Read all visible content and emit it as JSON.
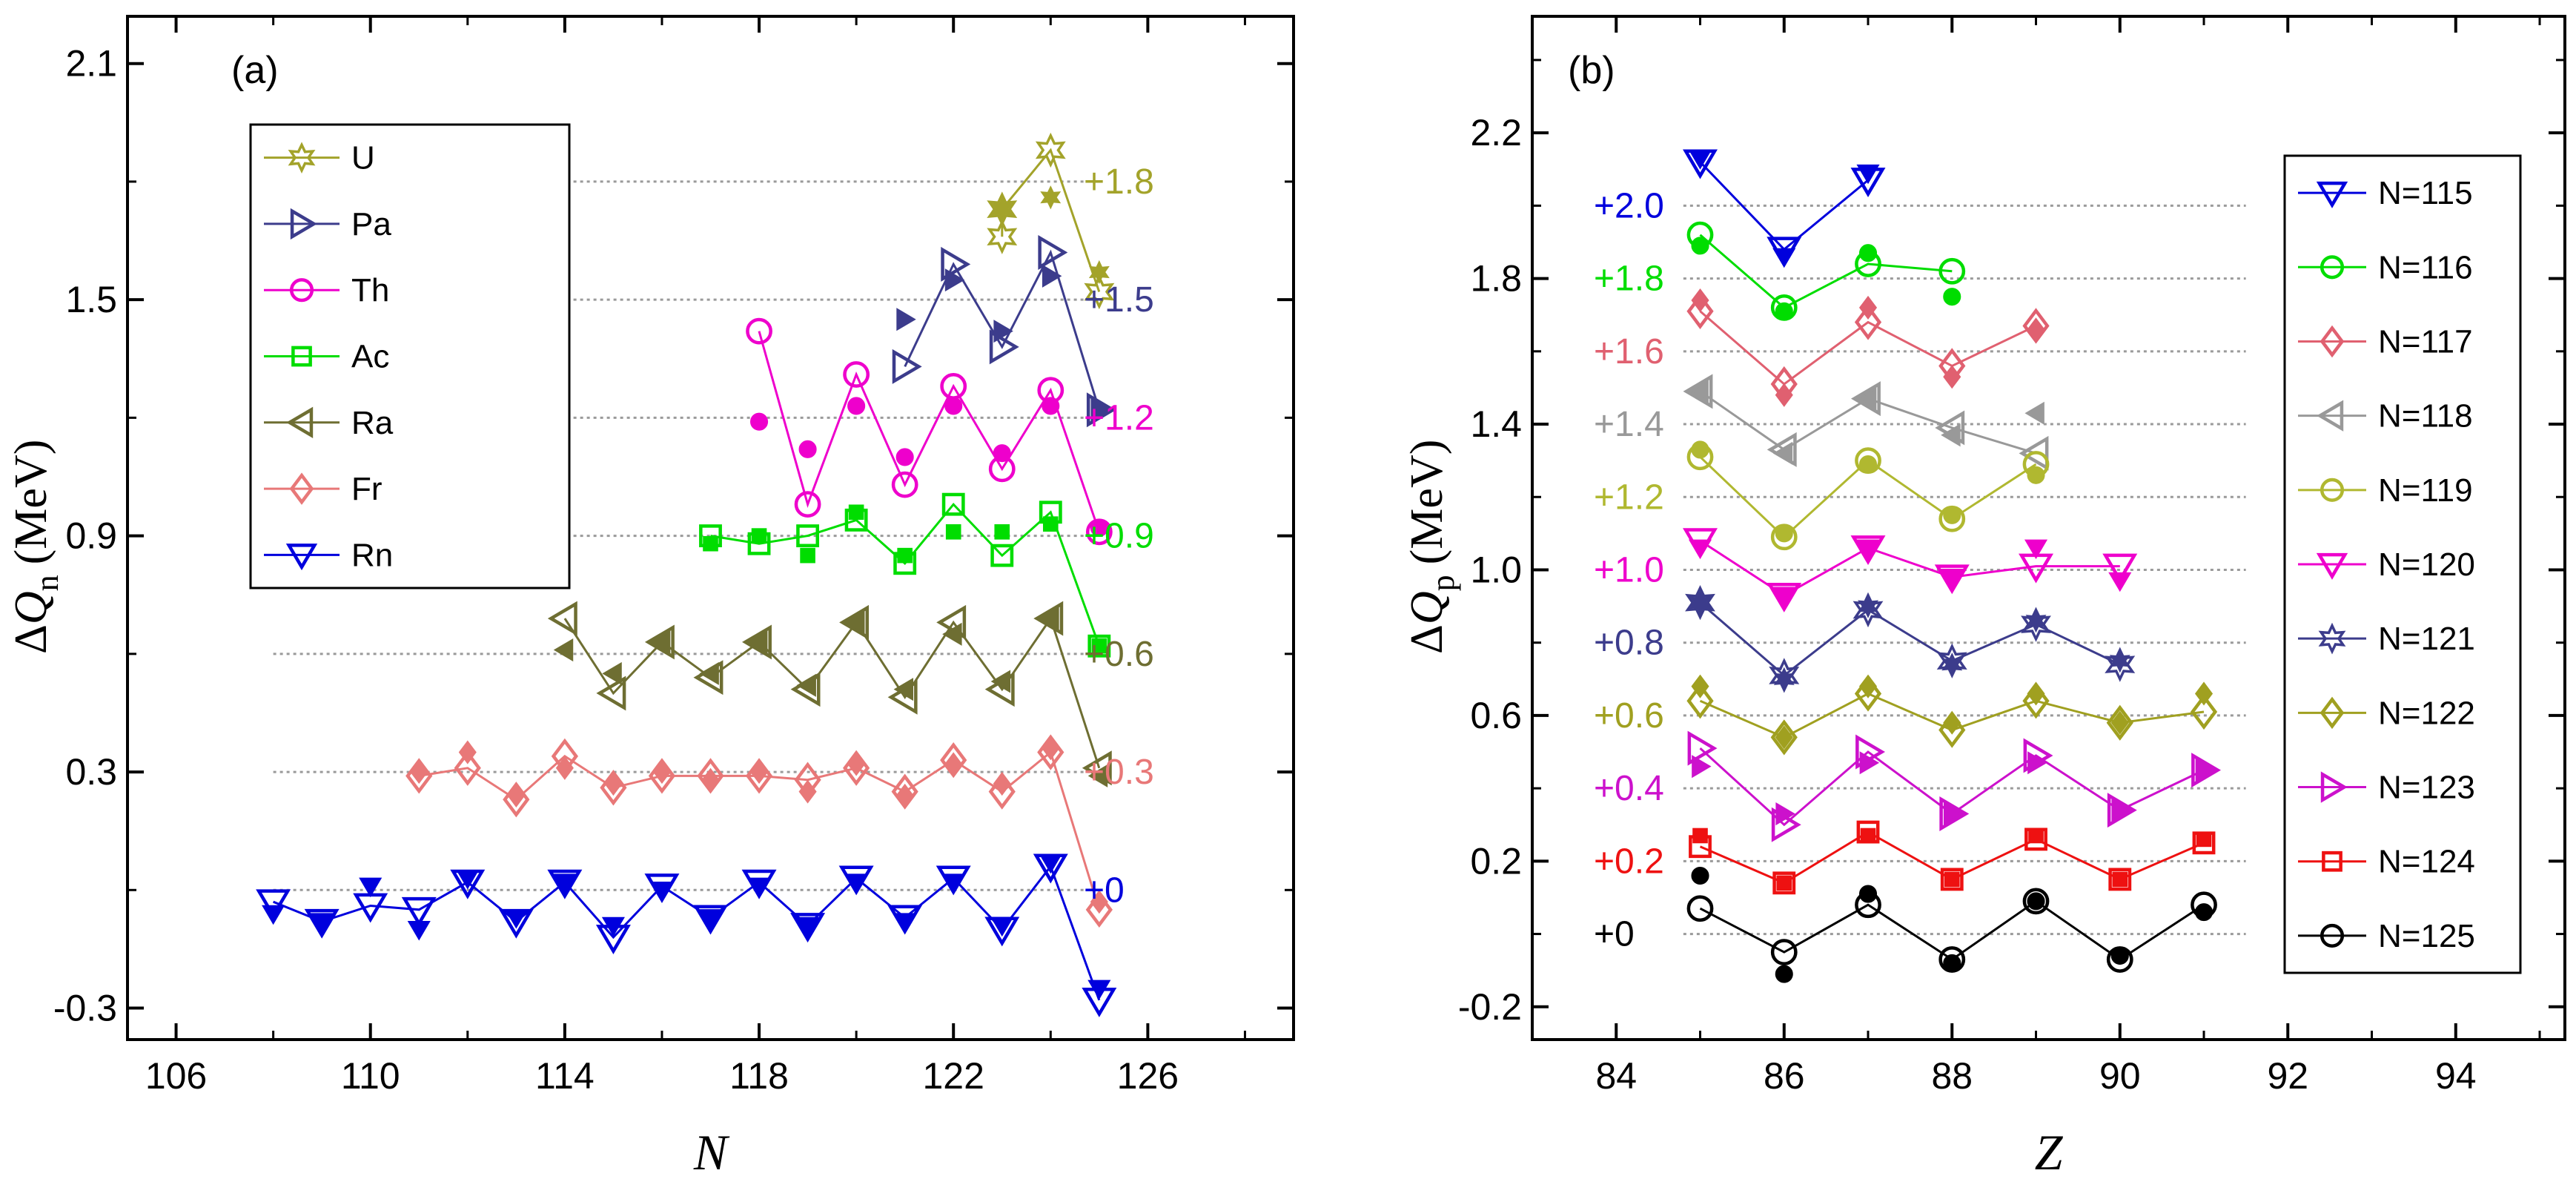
{
  "chart_data": [
    {
      "panel": "(a)",
      "type": "line",
      "xlabel": "N",
      "ylabel_prefix": "ΔQ",
      "ylabel_sub": "n",
      "ylabel_unit": "(MeV)",
      "xlim": [
        105,
        129
      ],
      "ylim": [
        -0.38,
        2.22
      ],
      "xticks": [
        106,
        110,
        114,
        118,
        122,
        126
      ],
      "yticks": [
        -0.3,
        0.3,
        0.9,
        1.5,
        2.1
      ],
      "ytick_labels": [
        "-0.3",
        "0.3",
        "0.9",
        "1.5",
        "2.1"
      ],
      "legend_position": "top-left",
      "series": [
        {
          "name": "U",
          "offset_label": "+1.8",
          "offset": 1.8,
          "color": "#a3a32a",
          "marker": "star",
          "x": [
            123,
            123,
            124,
            125
          ],
          "calc": [
            1.66,
            1.73,
            1.88,
            1.52
          ],
          "exp": [
            1.73,
            null,
            1.76,
            1.57
          ],
          "exp_x": [
            123,
            123,
            124,
            125
          ]
        },
        {
          "name": "Pa",
          "offset_label": "+1.5",
          "offset": 1.5,
          "color": "#3c3c8c",
          "marker": "tri-right",
          "x": [
            121,
            122,
            123,
            124,
            125
          ],
          "calc": [
            1.33,
            1.59,
            1.38,
            1.62,
            1.22
          ],
          "exp": [
            1.45,
            1.55,
            1.42,
            1.56,
            1.22
          ]
        },
        {
          "name": "Th",
          "offset_label": "+1.2",
          "offset": 1.2,
          "color": "#ee00cc",
          "marker": "circle",
          "x": [
            118,
            119,
            120,
            121,
            122,
            123,
            124,
            125
          ],
          "calc": [
            1.42,
            0.98,
            1.31,
            1.03,
            1.28,
            1.07,
            1.27,
            0.91
          ],
          "exp": [
            1.19,
            1.12,
            1.23,
            1.1,
            1.23,
            1.11,
            1.23,
            0.92
          ]
        },
        {
          "name": "Ac",
          "offset_label": "+0.9",
          "offset": 0.9,
          "color": "#00dd00",
          "marker": "square",
          "x": [
            117,
            118,
            119,
            120,
            121,
            122,
            123,
            124,
            125
          ],
          "calc": [
            0.9,
            0.88,
            0.9,
            0.94,
            0.83,
            0.98,
            0.85,
            0.96,
            0.62
          ],
          "exp": [
            0.88,
            0.9,
            0.85,
            0.96,
            0.85,
            0.91,
            0.91,
            0.93,
            0.62
          ]
        },
        {
          "name": "Ra",
          "offset_label": "+0.6",
          "offset": 0.6,
          "color": "#6e6e32",
          "marker": "tri-left",
          "x": [
            114,
            115,
            116,
            117,
            118,
            119,
            120,
            121,
            122,
            123,
            124,
            125
          ],
          "calc": [
            0.69,
            0.5,
            0.63,
            0.54,
            0.63,
            0.51,
            0.68,
            0.49,
            0.68,
            0.51,
            0.69,
            0.31
          ],
          "exp": [
            0.61,
            0.55,
            0.63,
            0.55,
            0.63,
            0.52,
            0.68,
            0.51,
            0.65,
            0.53,
            0.69,
            0.29
          ]
        },
        {
          "name": "Fr",
          "offset_label": "+0.3",
          "offset": 0.3,
          "color": "#e87878",
          "marker": "diamond",
          "x": [
            111,
            112,
            113,
            114,
            115,
            116,
            117,
            118,
            119,
            120,
            121,
            122,
            123,
            124,
            125
          ],
          "calc": [
            0.29,
            0.31,
            0.23,
            0.34,
            0.26,
            0.29,
            0.29,
            0.29,
            0.28,
            0.31,
            0.25,
            0.33,
            0.25,
            0.35,
            -0.05
          ],
          "exp": [
            0.3,
            0.35,
            0.24,
            0.31,
            0.27,
            0.3,
            0.28,
            0.3,
            0.25,
            0.32,
            0.24,
            0.32,
            0.27,
            0.36,
            -0.03
          ]
        },
        {
          "name": "Rn",
          "offset_label": "+0",
          "offset": 0,
          "color": "#0000dd",
          "marker": "tri-down",
          "x": [
            108,
            109,
            110,
            111,
            112,
            113,
            114,
            115,
            116,
            117,
            118,
            119,
            120,
            121,
            122,
            123,
            124,
            125
          ],
          "calc": [
            -0.03,
            -0.08,
            -0.04,
            -0.05,
            0.02,
            -0.08,
            0.02,
            -0.12,
            0.01,
            -0.07,
            0.02,
            -0.09,
            0.03,
            -0.07,
            0.03,
            -0.1,
            0.06,
            -0.28
          ],
          "exp": [
            -0.06,
            -0.08,
            0.01,
            -0.1,
            0.03,
            -0.07,
            0.02,
            -0.09,
            0.0,
            -0.07,
            0.01,
            -0.09,
            0.02,
            -0.08,
            0.02,
            -0.09,
            0.07,
            -0.25
          ]
        }
      ]
    },
    {
      "panel": "(b)",
      "type": "line",
      "xlabel": "Z",
      "ylabel_prefix": "ΔQ",
      "ylabel_sub": "p",
      "ylabel_unit": "(MeV)",
      "xlim": [
        83,
        95.3
      ],
      "ylim": [
        -0.29,
        2.52
      ],
      "xticks": [
        84,
        86,
        88,
        90,
        92,
        94
      ],
      "yticks": [
        -0.2,
        0.2,
        0.6,
        1.0,
        1.4,
        1.8,
        2.2
      ],
      "ytick_labels": [
        "-0.2",
        "0.2",
        "0.6",
        "1.0",
        "1.4",
        "1.8",
        "2.2"
      ],
      "legend_position": "right",
      "series": [
        {
          "name": "N=115",
          "offset_label": "+2.0",
          "offset": 2.0,
          "color": "#0000dd",
          "marker": "tri-down",
          "x": [
            85,
            86,
            87
          ],
          "calc": [
            2.12,
            1.88,
            2.07
          ],
          "exp": [
            2.13,
            1.86,
            2.09
          ]
        },
        {
          "name": "N=116",
          "offset_label": "+1.8",
          "offset": 1.8,
          "color": "#00dd00",
          "marker": "circle",
          "x": [
            85,
            86,
            87,
            88
          ],
          "calc": [
            1.92,
            1.72,
            1.84,
            1.82
          ],
          "exp": [
            1.89,
            1.71,
            1.87,
            1.75
          ]
        },
        {
          "name": "N=117",
          "offset_label": "+1.6",
          "offset": 1.6,
          "color": "#e06070",
          "marker": "diamond",
          "x": [
            85,
            86,
            87,
            88,
            89
          ],
          "calc": [
            1.71,
            1.51,
            1.68,
            1.56,
            1.67
          ],
          "exp": [
            1.74,
            1.48,
            1.72,
            1.53,
            1.66
          ]
        },
        {
          "name": "N=118",
          "offset_label": "+1.4",
          "offset": 1.4,
          "color": "#999999",
          "marker": "tri-left",
          "x": [
            85,
            86,
            87,
            88,
            89
          ],
          "calc": [
            1.49,
            1.33,
            1.47,
            1.39,
            1.32
          ],
          "exp": [
            1.49,
            1.32,
            1.47,
            1.37,
            1.43
          ]
        },
        {
          "name": "N=119",
          "offset_label": "+1.2",
          "offset": 1.2,
          "color": "#b0b830",
          "marker": "circle",
          "x": [
            85,
            86,
            87,
            88,
            89
          ],
          "calc": [
            1.31,
            1.09,
            1.3,
            1.14,
            1.29
          ],
          "exp": [
            1.33,
            1.1,
            1.29,
            1.15,
            1.26
          ]
        },
        {
          "name": "N=120",
          "offset_label": "+1.0",
          "offset": 1.0,
          "color": "#ee00cc",
          "marker": "tri-down",
          "x": [
            85,
            86,
            87,
            88,
            89,
            90
          ],
          "calc": [
            1.08,
            0.93,
            1.06,
            0.98,
            1.01,
            1.01
          ],
          "exp": [
            1.06,
            0.93,
            1.06,
            0.98,
            1.06,
            0.97
          ]
        },
        {
          "name": "N=121",
          "offset_label": "+0.8",
          "offset": 0.8,
          "color": "#3c3c8c",
          "marker": "star",
          "x": [
            85,
            86,
            87,
            88,
            89,
            90
          ],
          "calc": [
            0.91,
            0.71,
            0.89,
            0.75,
            0.85,
            0.74
          ],
          "exp": [
            0.91,
            0.7,
            0.9,
            0.74,
            0.86,
            0.75
          ]
        },
        {
          "name": "N=122",
          "offset_label": "+0.6",
          "offset": 0.6,
          "color": "#a0a020",
          "marker": "diamond",
          "x": [
            85,
            86,
            87,
            88,
            89,
            90,
            91
          ],
          "calc": [
            0.64,
            0.54,
            0.66,
            0.56,
            0.64,
            0.58,
            0.61
          ],
          "exp": [
            0.68,
            0.54,
            0.68,
            0.58,
            0.66,
            0.58,
            0.66
          ]
        },
        {
          "name": "N=123",
          "offset_label": "+0.4",
          "offset": 0.4,
          "color": "#cc11cc",
          "marker": "tri-right",
          "x": [
            85,
            86,
            87,
            88,
            89,
            90,
            91
          ],
          "calc": [
            0.51,
            0.3,
            0.5,
            0.33,
            0.49,
            0.34,
            0.45
          ],
          "exp": [
            0.46,
            0.33,
            0.47,
            0.33,
            0.47,
            0.34,
            0.45
          ]
        },
        {
          "name": "N=124",
          "offset_label": "+0.2",
          "offset": 0.2,
          "color": "#ee1111",
          "marker": "square",
          "x": [
            85,
            86,
            87,
            88,
            89,
            90,
            91
          ],
          "calc": [
            0.24,
            0.14,
            0.28,
            0.15,
            0.26,
            0.15,
            0.25
          ],
          "exp": [
            0.27,
            0.14,
            0.27,
            0.15,
            0.27,
            0.15,
            0.26
          ]
        },
        {
          "name": "N=125",
          "offset_label": "+0",
          "offset": 0,
          "color": "#000000",
          "marker": "circle",
          "x": [
            85,
            86,
            87,
            88,
            89,
            90,
            91
          ],
          "calc": [
            0.07,
            -0.05,
            0.08,
            -0.07,
            0.09,
            -0.07,
            0.08
          ],
          "exp": [
            0.16,
            -0.11,
            0.11,
            -0.08,
            0.09,
            -0.06,
            0.06
          ]
        }
      ]
    }
  ]
}
